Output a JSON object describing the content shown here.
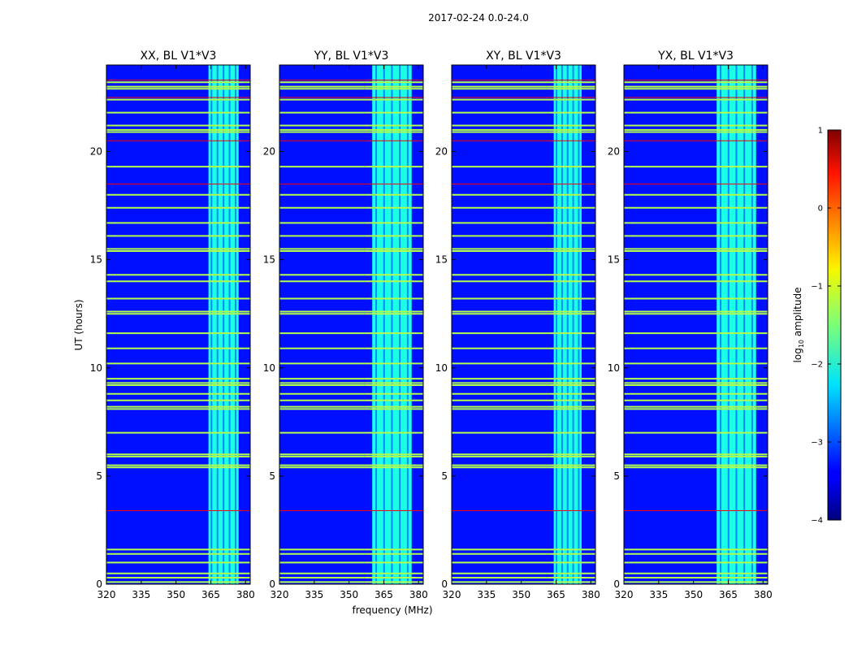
{
  "chart_data": {
    "type": "heatmap",
    "title": "2017-02-24 0.0-24.0",
    "xlabel": "frequency (MHz)",
    "ylabel": "UT (hours)",
    "xlim": [
      320,
      382
    ],
    "ylim": [
      0,
      24
    ],
    "xticks": [
      320,
      335,
      350,
      365,
      380
    ],
    "yticks": [
      0,
      5,
      10,
      15,
      20
    ],
    "x_tick_labels": [
      "320",
      "335",
      "350",
      "365",
      "380"
    ],
    "y_tick_labels": [
      "0",
      "5",
      "10",
      "15",
      "20"
    ],
    "colormap": "jet",
    "colorbar": {
      "label_main": "log",
      "label_sub": "10",
      "label_rest": " amplitude",
      "range": [
        -4,
        1
      ],
      "ticks": [
        1,
        0,
        -1,
        -2,
        -3,
        -4
      ],
      "tick_labels": [
        "1",
        "0",
        "−1",
        "−2",
        "−3",
        "−4"
      ]
    },
    "panels": [
      {
        "title": "XX, BL V1*V3",
        "band": [
          364,
          377
        ]
      },
      {
        "title": "YY, BL V1*V3",
        "band": [
          360,
          377
        ]
      },
      {
        "title": "XY, BL V1*V3",
        "band": [
          364,
          376
        ]
      },
      {
        "title": "YX, BL V1*V3",
        "band": [
          360,
          377
        ]
      }
    ],
    "background_level": -3.3,
    "band_level": -2.0,
    "flagged_rows_ut": [
      0.1,
      0.3,
      0.5,
      1.0,
      1.4,
      1.6,
      5.4,
      5.5,
      5.9,
      6.0,
      7.0,
      8.1,
      8.2,
      8.5,
      8.8,
      9.2,
      9.3,
      9.5,
      10.2,
      10.9,
      11.6,
      12.5,
      12.6,
      13.2,
      14.0,
      14.3,
      15.4,
      15.5,
      16.1,
      16.7,
      17.4,
      18.0,
      19.3,
      20.9,
      21.0,
      21.2,
      21.8,
      22.4,
      22.9,
      23.0,
      23.2
    ],
    "red_rows_ut": [
      3.4,
      18.5,
      20.5,
      22.5,
      23.3
    ]
  }
}
